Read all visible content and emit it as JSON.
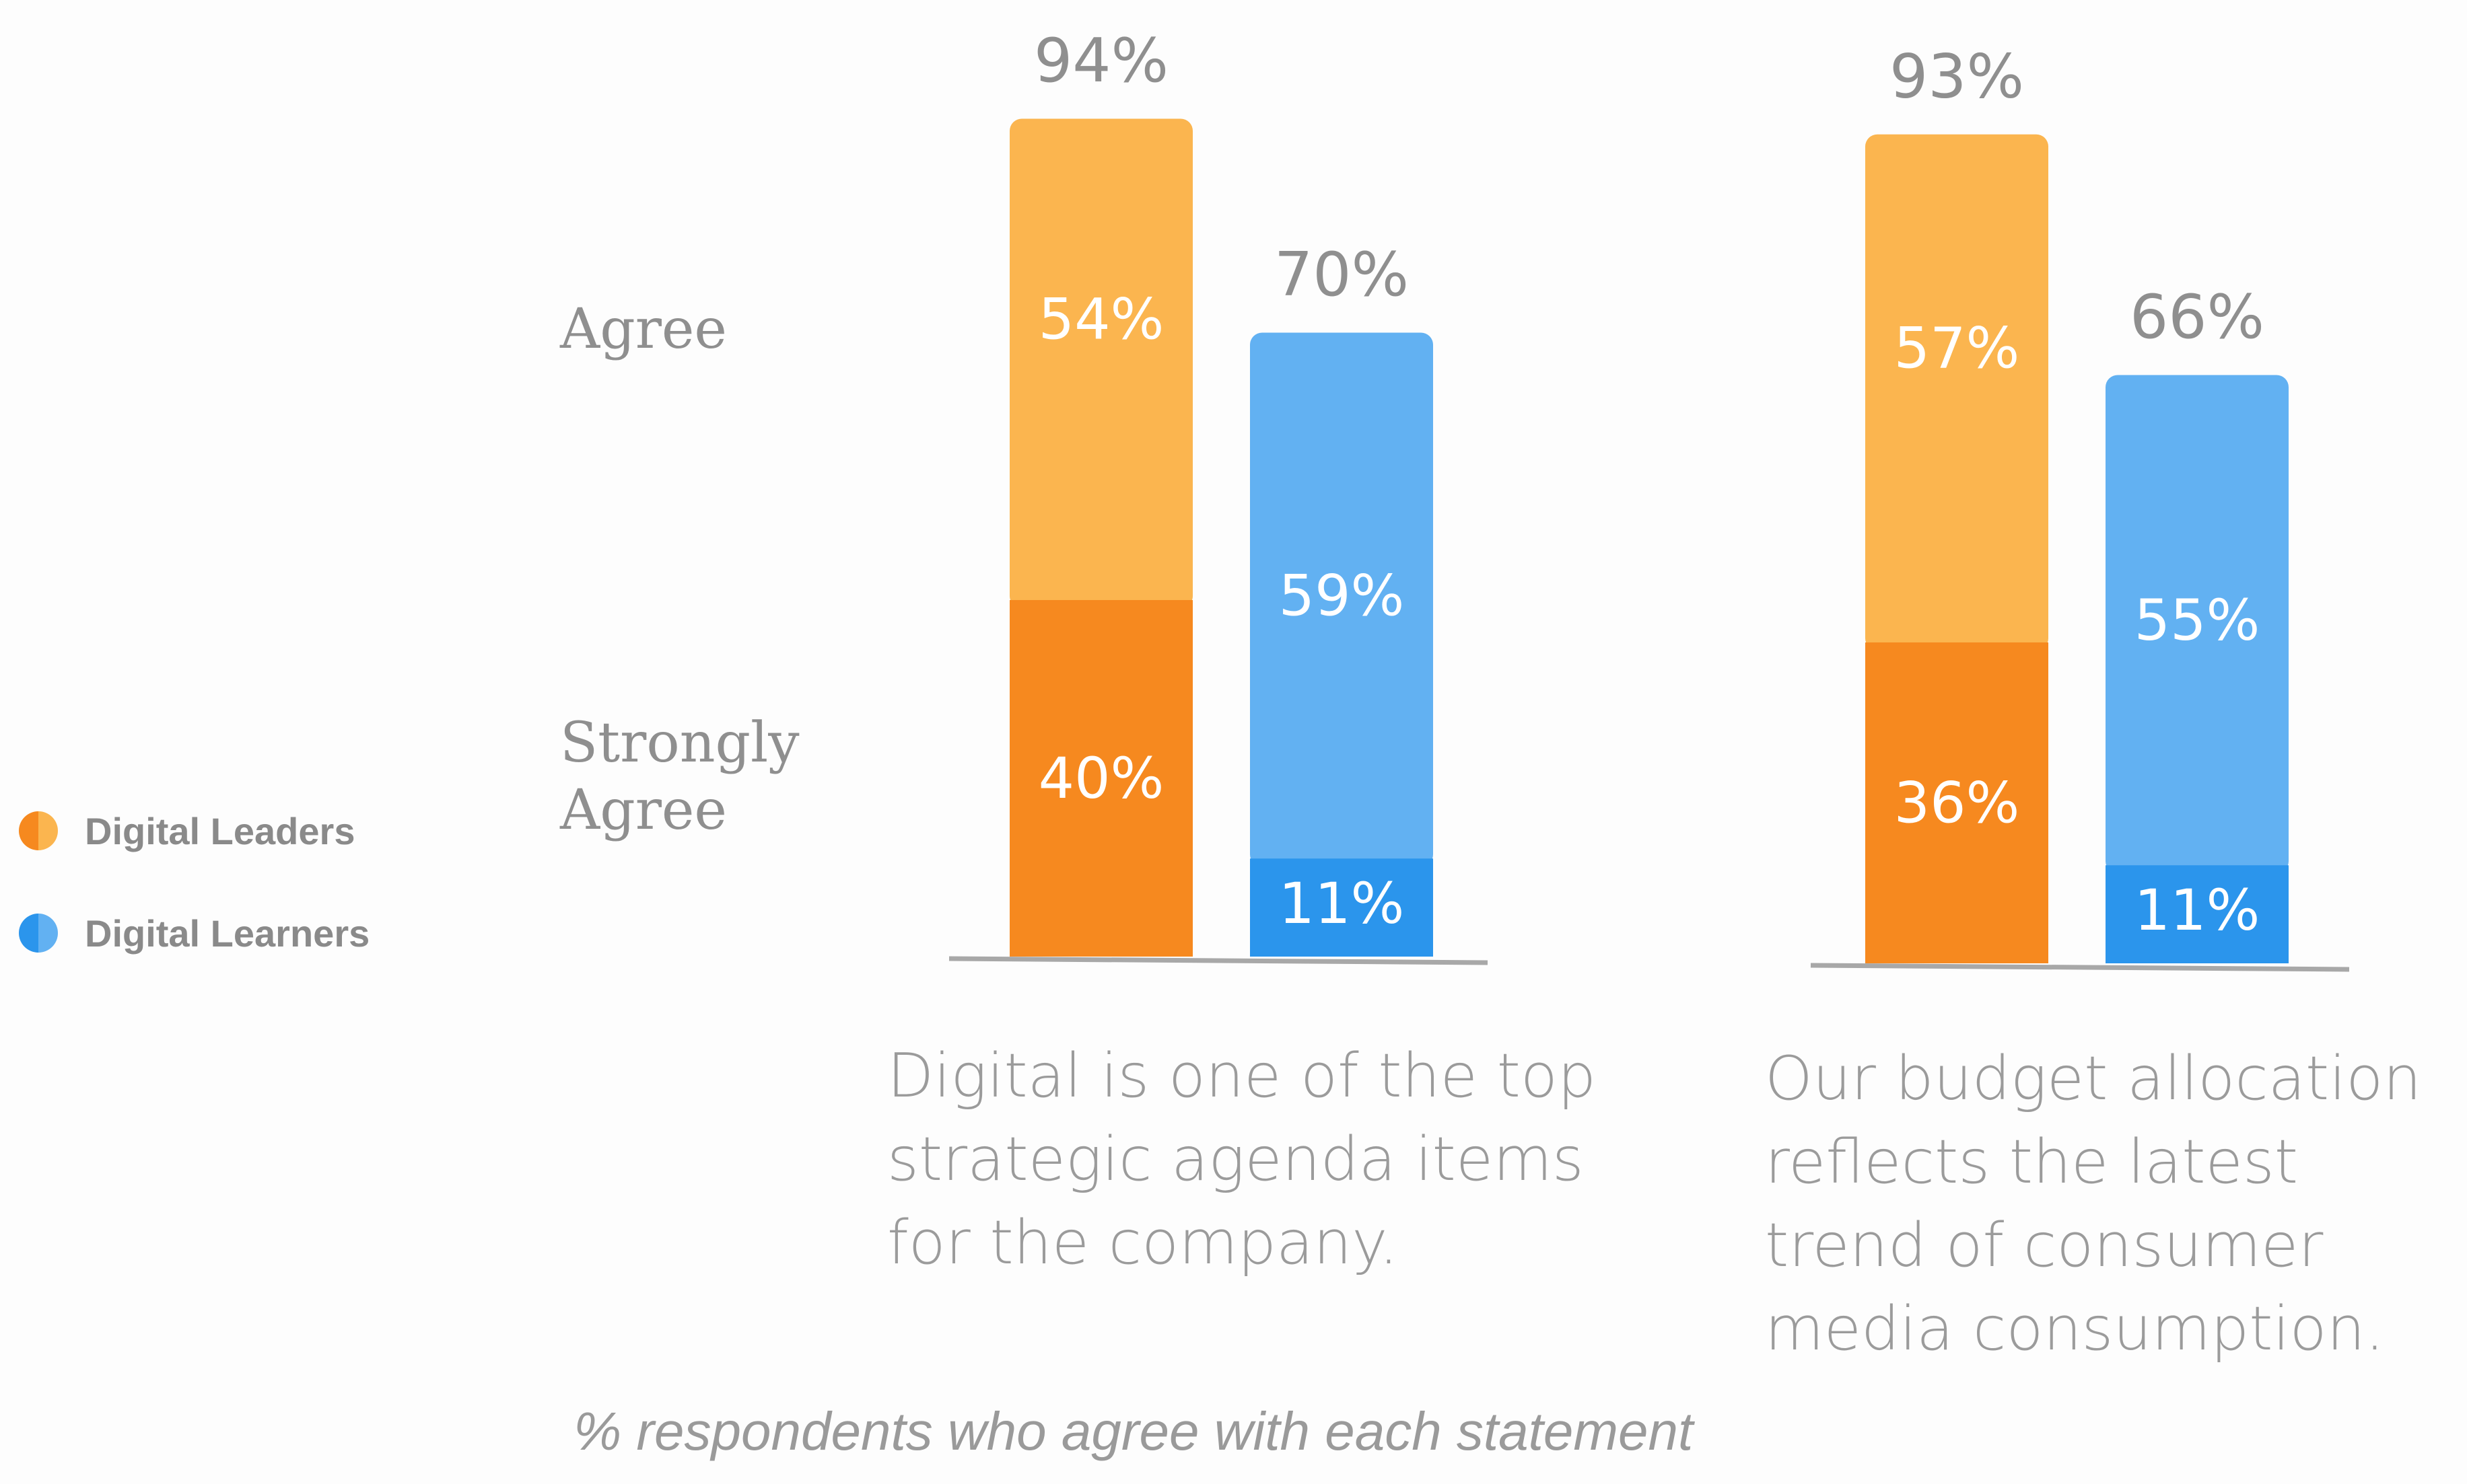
{
  "chart_data": {
    "type": "stacked-bar",
    "caption": "% respondents who agree with each statement",
    "row_labels": {
      "agree": "Agree",
      "strongly_agree_line1": "Strongly",
      "strongly_agree_line2": "Agree"
    },
    "legend": [
      {
        "name": "Digital Leaders",
        "color": "#f6891f",
        "color_light": "#fbb54f"
      },
      {
        "name": "Digital Learners",
        "color": "#2b95ec",
        "color_light": "#62b1f2"
      }
    ],
    "stack_order": [
      "Strongly Agree",
      "Agree"
    ],
    "groups": [
      {
        "statement": [
          "Digital is one of the top",
          "strategic agenda items",
          "for the company."
        ],
        "bars": [
          {
            "series": "Digital Leaders",
            "strongly_agree": 40,
            "agree": 54,
            "total": 94,
            "strongly_agree_label": "40%",
            "agree_label": "54%",
            "total_label": "94%"
          },
          {
            "series": "Digital Learners",
            "strongly_agree": 11,
            "agree": 59,
            "total": 70,
            "strongly_agree_label": "11%",
            "agree_label": "59%",
            "total_label": "70%"
          }
        ]
      },
      {
        "statement": [
          "Our budget allocation",
          "reflects the latest",
          "trend of consumer",
          "media consumption."
        ],
        "bars": [
          {
            "series": "Digital Leaders",
            "strongly_agree": 36,
            "agree": 57,
            "total": 93,
            "strongly_agree_label": "36%",
            "agree_label": "57%",
            "total_label": "93%"
          },
          {
            "series": "Digital Learners",
            "strongly_agree": 11,
            "agree": 55,
            "total": 66,
            "strongly_agree_label": "11%",
            "agree_label": "55%",
            "total_label": "66%"
          }
        ]
      }
    ],
    "colors": {
      "baseline": "#a8a8a8",
      "total_label": "#8f8f8f",
      "inner_label": "#ffffff"
    }
  }
}
